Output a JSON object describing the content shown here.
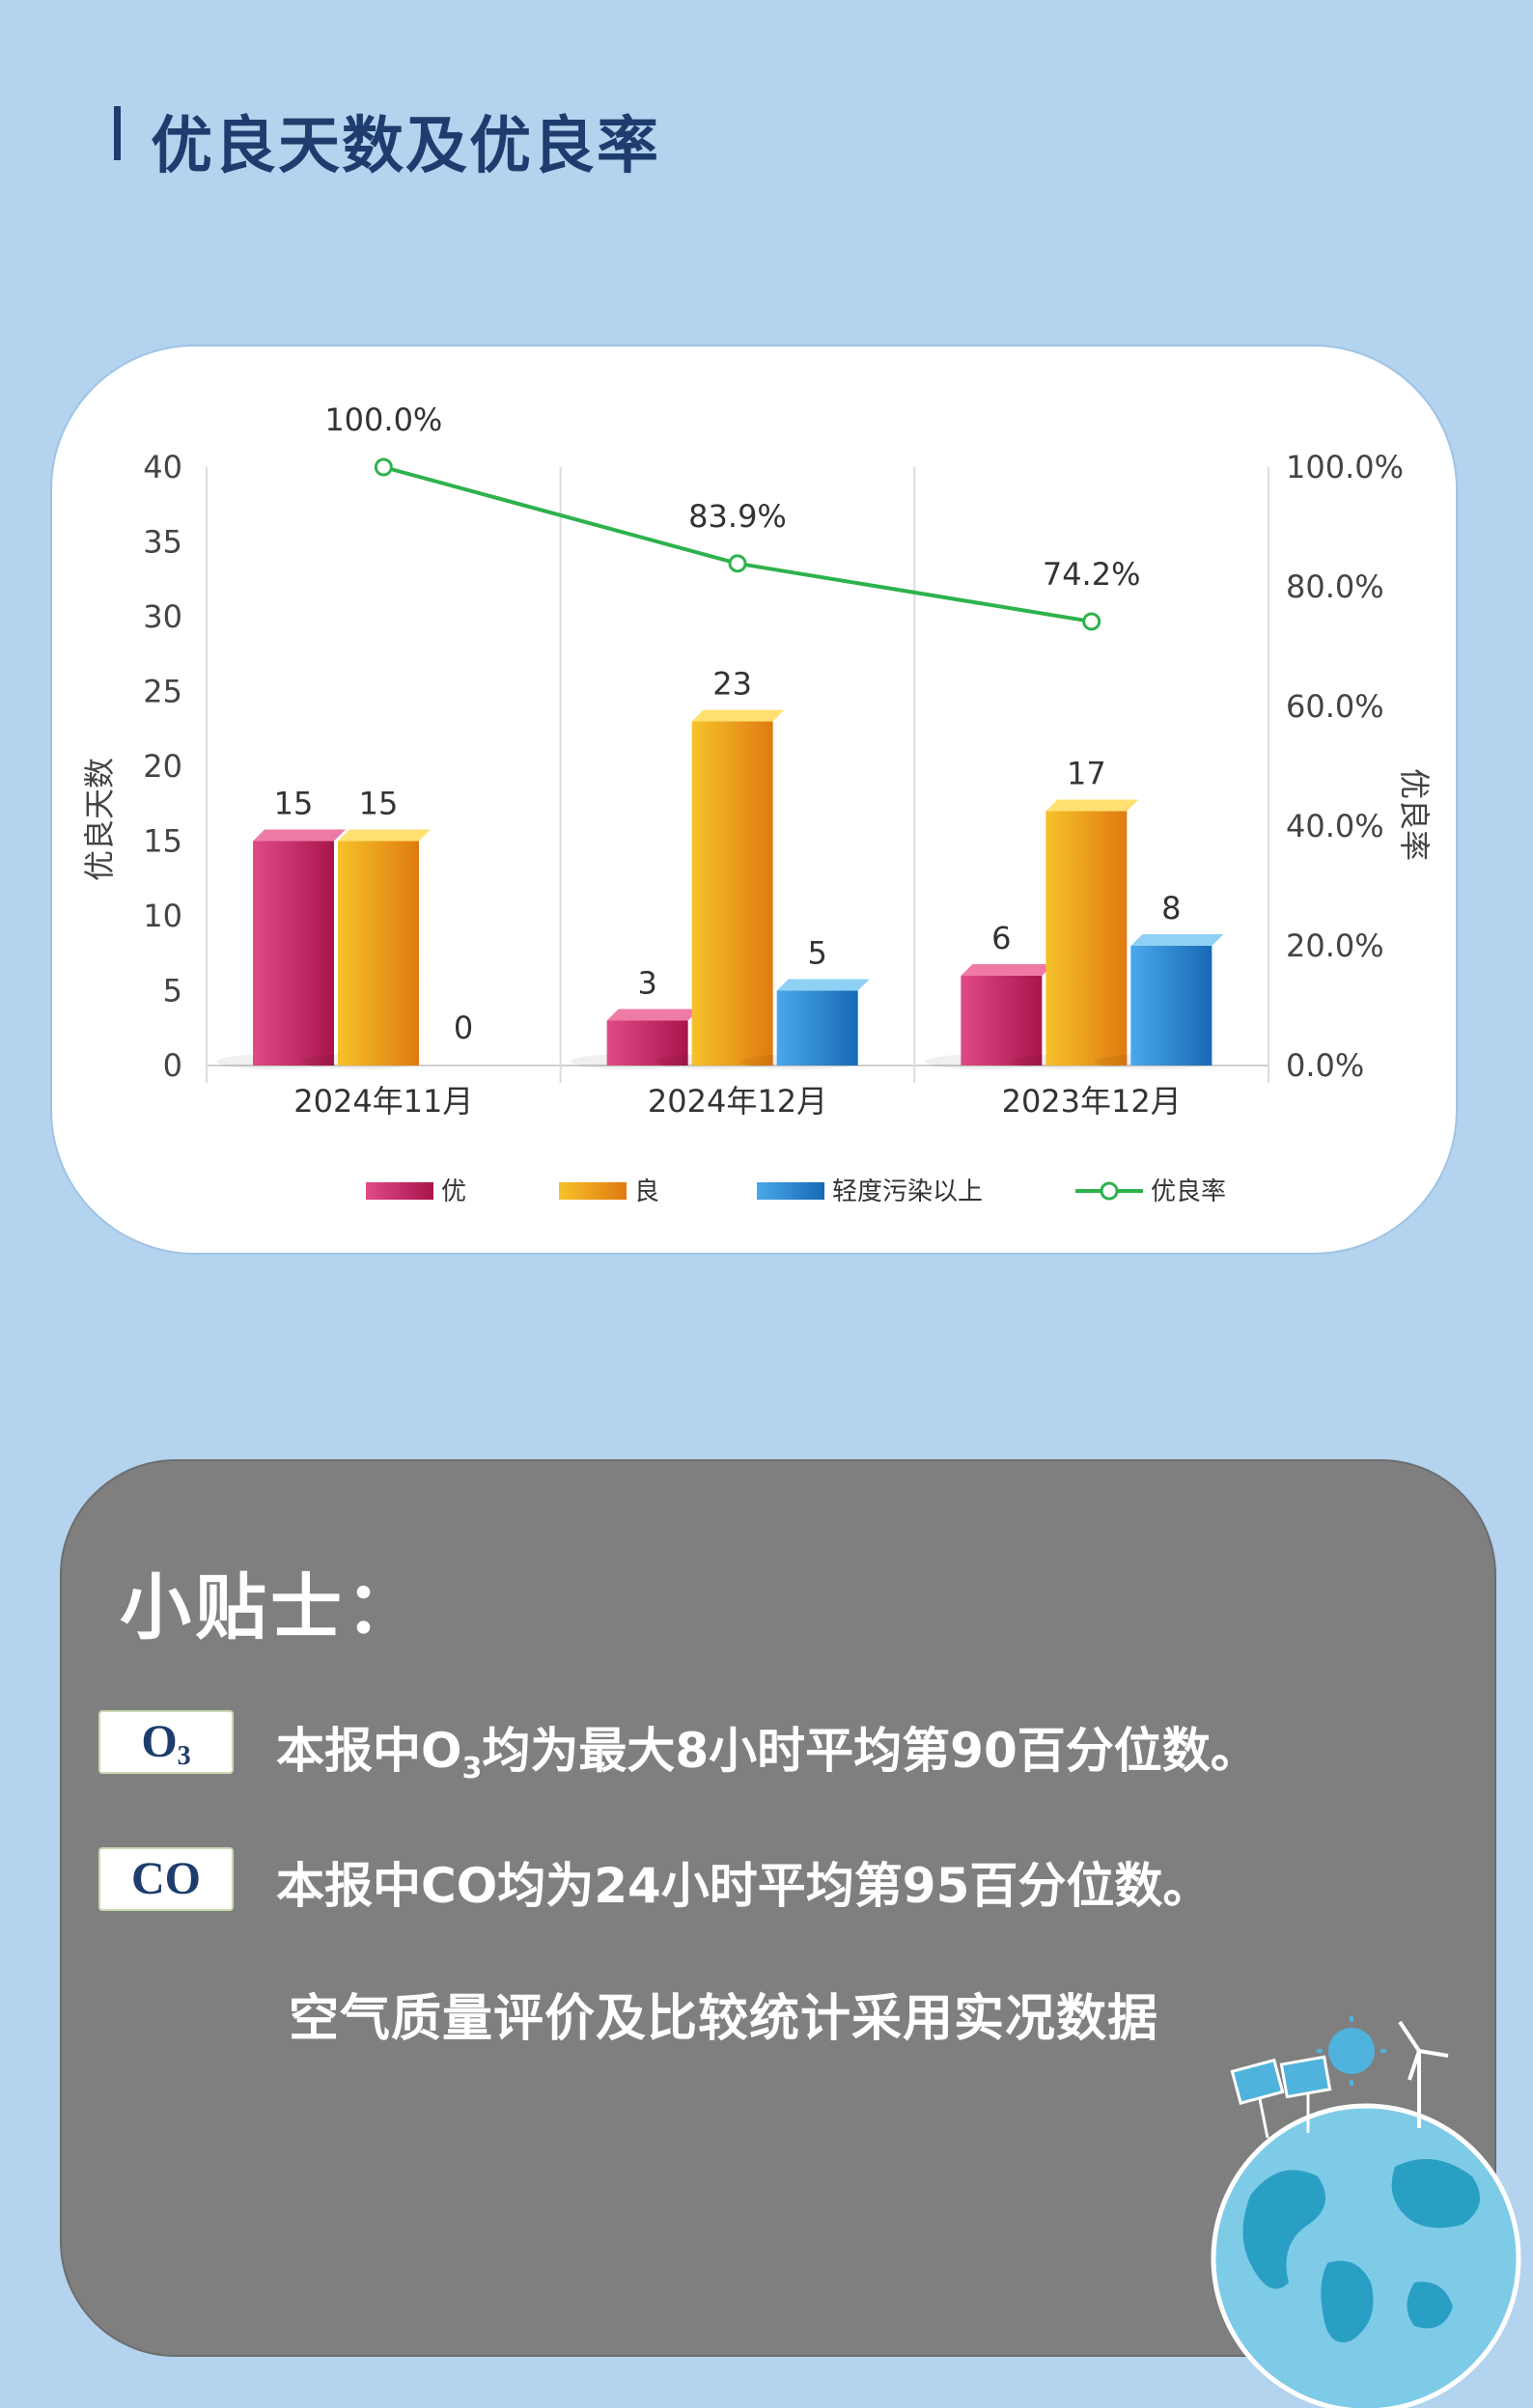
{
  "page": {
    "title": "优良天数及优良率"
  },
  "chart_data": {
    "type": "bar",
    "categories": [
      "2024年11月",
      "2024年12月",
      "2023年12月"
    ],
    "series": [
      {
        "name": "优",
        "values": [
          15,
          3,
          6
        ],
        "color": "#d6336c"
      },
      {
        "name": "良",
        "values": [
          15,
          23,
          17
        ],
        "color": "#f0a020"
      },
      {
        "name": "轻度污染以上",
        "values": [
          0,
          5,
          8
        ],
        "color": "#2f8fd8"
      }
    ],
    "line_series": {
      "name": "优良率",
      "values": [
        100.0,
        83.9,
        74.2
      ],
      "labels": [
        "100.0%",
        "83.9%",
        "74.2%"
      ],
      "color": "#2eb24c"
    },
    "ylabel": "优良天数",
    "ylabel_right": "优良率",
    "ylim": [
      0,
      40
    ],
    "yticks": [
      "0",
      "5",
      "10",
      "15",
      "20",
      "25",
      "30",
      "35",
      "40"
    ],
    "ylim_right": [
      0,
      100
    ],
    "yticks_right": [
      "0.0%",
      "20.0%",
      "40.0%",
      "60.0%",
      "80.0%",
      "100.0%"
    ],
    "legend_position": "bottom",
    "grid": false
  },
  "tips": {
    "title": "小贴士：",
    "o3_badge": "O",
    "o3_badge_sub": "3",
    "o3_text_pre": "本报中O",
    "o3_text_sub": "3",
    "o3_text_post": "均为最大8小时平均第90百分位数。",
    "co_badge": "CO",
    "co_text": "本报中CO均为24小时平均第95百分位数。",
    "note": "空气质量评价及比较统计采用实况数据"
  }
}
